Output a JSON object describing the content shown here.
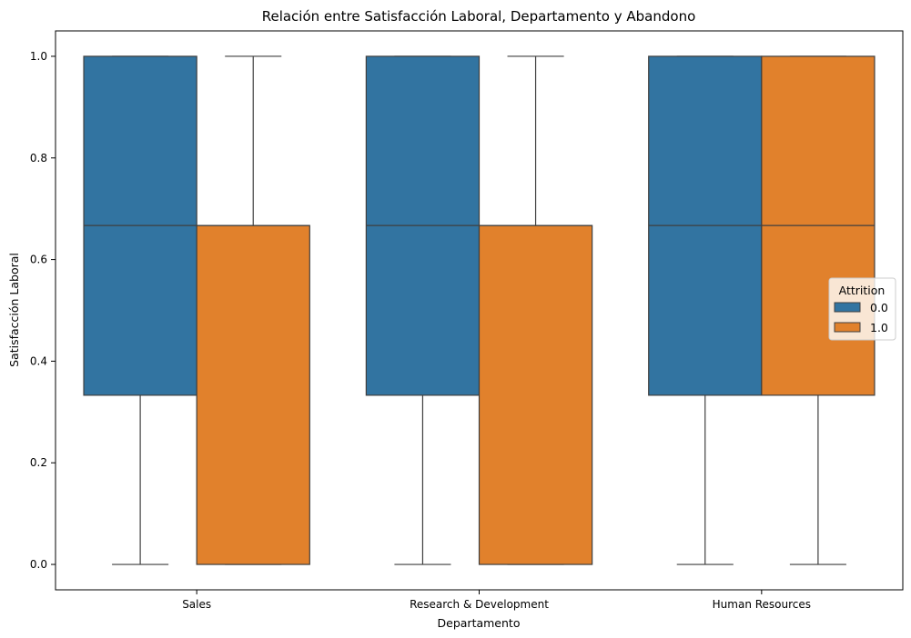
{
  "chart_data": {
    "type": "box",
    "title": "Relación entre Satisfacción Laboral, Departamento y Abandono",
    "xlabel": "Departamento",
    "ylabel": "Satisfacción Laboral",
    "categories": [
      "Sales",
      "Research & Development",
      "Human Resources"
    ],
    "ylim": [
      -0.05,
      1.05
    ],
    "yticks": [
      0.0,
      0.2,
      0.4,
      0.6,
      0.8,
      1.0
    ],
    "ytick_labels": [
      "0.0",
      "0.2",
      "0.4",
      "0.6",
      "0.8",
      "1.0"
    ],
    "grid": false,
    "legend": {
      "title": "Attrition",
      "position": "center-right"
    },
    "series": [
      {
        "name": "0.0",
        "color": "#3274a1",
        "boxes": [
          {
            "whisker_low": 0.0,
            "q1": 0.333,
            "median": 0.667,
            "q3": 1.0,
            "whisker_high": 1.0
          },
          {
            "whisker_low": 0.0,
            "q1": 0.333,
            "median": 0.667,
            "q3": 1.0,
            "whisker_high": 1.0
          },
          {
            "whisker_low": 0.0,
            "q1": 0.333,
            "median": 0.667,
            "q3": 1.0,
            "whisker_high": 1.0
          }
        ]
      },
      {
        "name": "1.0",
        "color": "#e1812c",
        "boxes": [
          {
            "whisker_low": 0.0,
            "q1": 0.0,
            "median": 0.667,
            "q3": 0.667,
            "whisker_high": 1.0
          },
          {
            "whisker_low": 0.0,
            "q1": 0.0,
            "median": 0.667,
            "q3": 0.667,
            "whisker_high": 1.0
          },
          {
            "whisker_low": 0.0,
            "q1": 0.333,
            "median": 0.667,
            "q3": 1.0,
            "whisker_high": 1.0
          }
        ]
      }
    ]
  }
}
